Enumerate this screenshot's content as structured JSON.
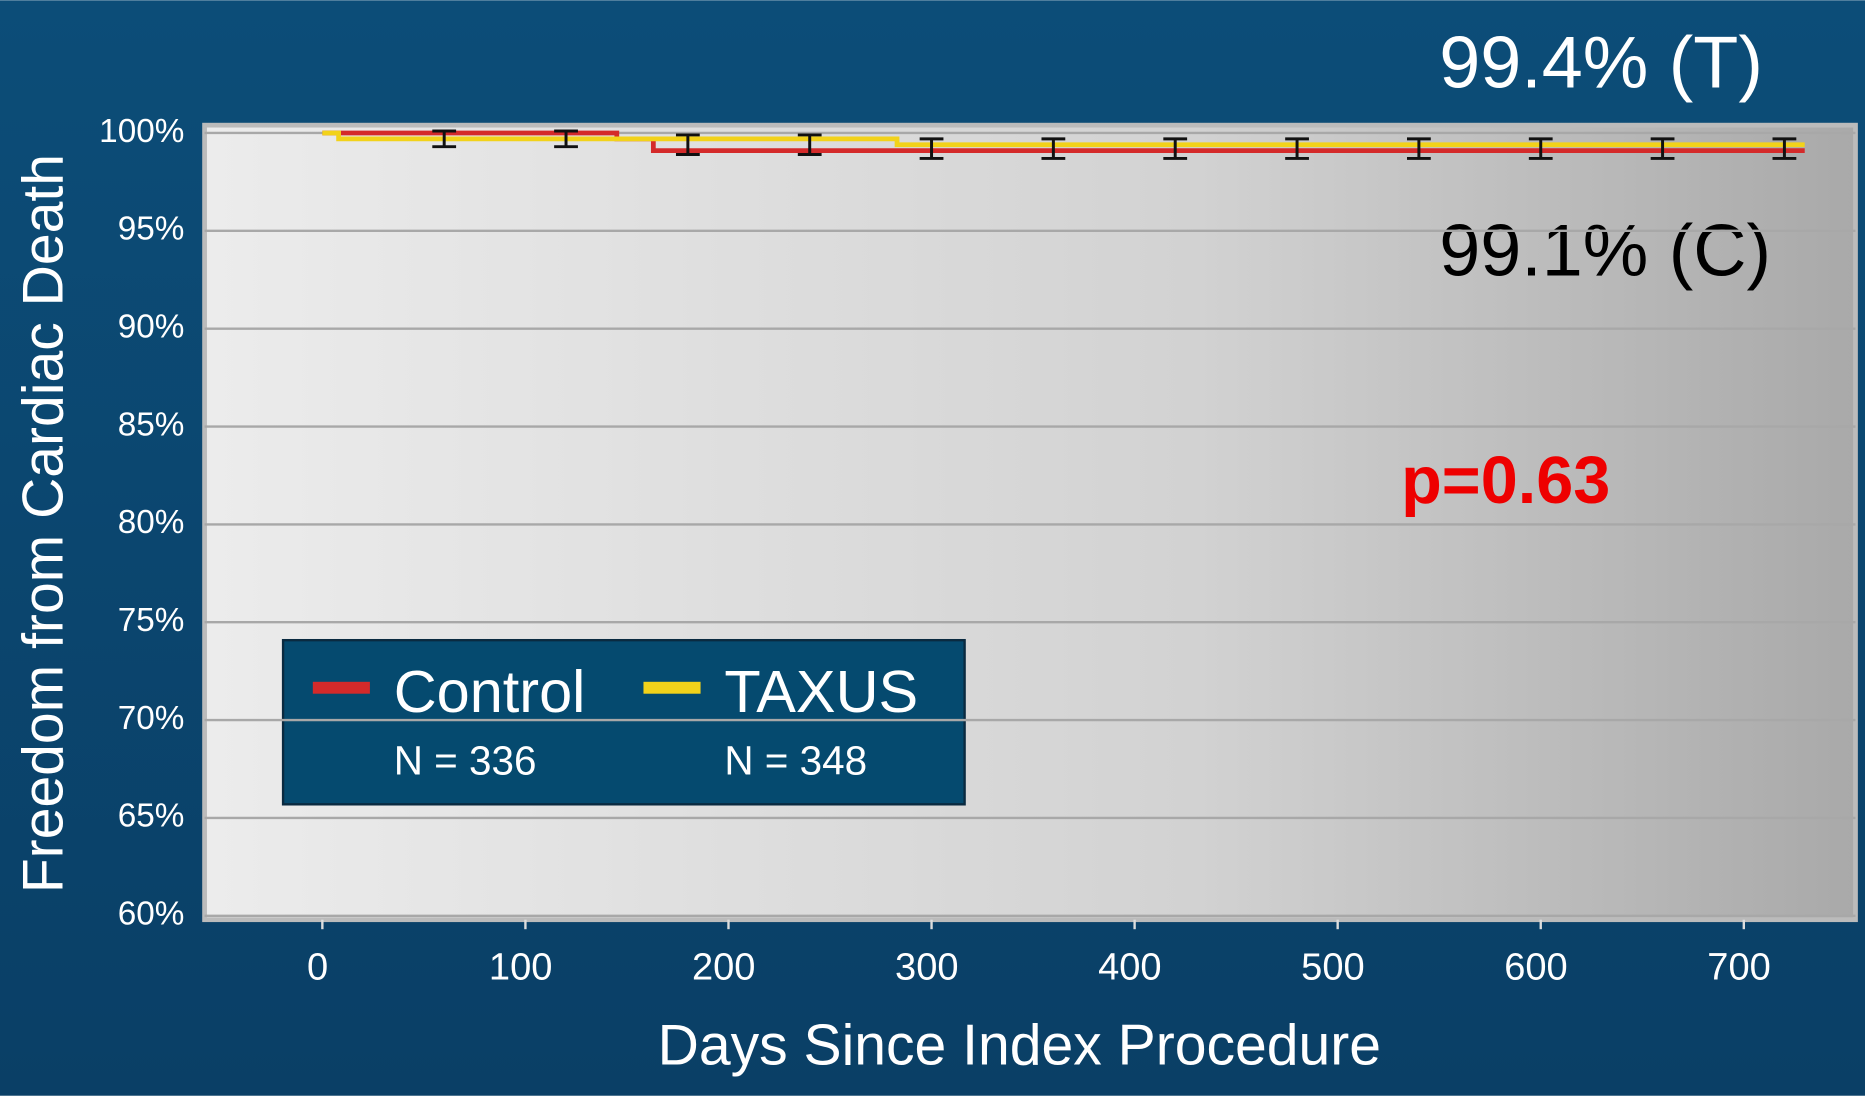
{
  "chart_data": {
    "type": "line",
    "step": true,
    "x_label": "Days Since Index Procedure",
    "y_label": "Freedom from Cardiac Death",
    "xlim": [
      -58,
      755
    ],
    "xticks": [
      0,
      100,
      200,
      300,
      400,
      500,
      600,
      700
    ],
    "ylim": [
      59.8,
      100.4
    ],
    "yticks": [
      {
        "value": 60,
        "label": "60%"
      },
      {
        "value": 65,
        "label": "65%"
      },
      {
        "value": 70,
        "label": "70%"
      },
      {
        "value": 75,
        "label": "75%"
      },
      {
        "value": 80,
        "label": "80%"
      },
      {
        "value": 85,
        "label": "85%"
      },
      {
        "value": 90,
        "label": "90%"
      },
      {
        "value": 95,
        "label": "95%"
      },
      {
        "value": 100,
        "label": "100%"
      }
    ],
    "grid": true,
    "series": [
      {
        "name": "Control",
        "note": "N = 336",
        "color": "#d42a2a",
        "x": [
          0,
          145,
          163,
          730
        ],
        "values": [
          100,
          99.7,
          99.1,
          99.1
        ]
      },
      {
        "name": "TAXUS",
        "note": "N = 348",
        "color": "#f2d21a",
        "x": [
          0,
          8,
          283,
          730
        ],
        "values": [
          100,
          99.7,
          99.4,
          99.4
        ]
      }
    ],
    "error_bars": {
      "x": [
        60,
        120,
        180,
        240,
        300,
        360,
        420,
        480,
        540,
        600,
        660,
        720
      ],
      "values": [
        99.7,
        99.7,
        99.4,
        99.4,
        99.2,
        99.2,
        99.2,
        99.2,
        99.2,
        99.2,
        99.2,
        99.2
      ],
      "errors": [
        0.4,
        0.4,
        0.5,
        0.5,
        0.5,
        0.5,
        0.5,
        0.5,
        0.5,
        0.5,
        0.5,
        0.5
      ]
    },
    "annotations": [
      "99.4% (T)",
      "99.1% (C)",
      "p=0.63"
    ]
  }
}
